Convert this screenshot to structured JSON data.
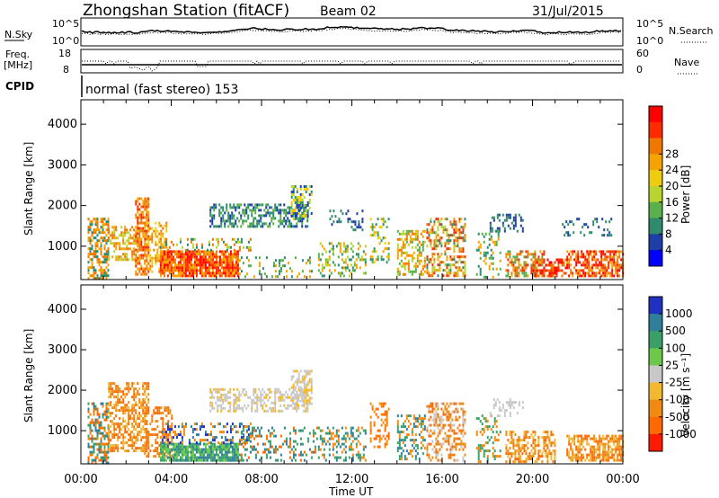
{
  "header": {
    "station": "Zhongshan Station (fitACF)",
    "beam": "Beam 02",
    "date": "31/Jul/2015",
    "mode": "normal (fast stereo) 153"
  },
  "top_panels": {
    "nsky_label": "N.Sky",
    "nsky_ticks": [
      "10^5",
      "10^0"
    ],
    "nsearch_label": "N.Search",
    "nsearch_ticks": [
      "10^5",
      "10^0"
    ],
    "freq_label_1": "Freq.",
    "freq_label_2": "[MHz]",
    "freq_ticks": [
      "18",
      "8"
    ],
    "nave_label": "Nave",
    "nave_ticks": [
      "60",
      "0"
    ],
    "cpid_label": "CPID"
  },
  "chart_data": [
    {
      "type": "heatmap",
      "name": "power",
      "ylabel": "Slant Range [km]",
      "xlabel": "Time UT",
      "x_ticks": [
        "00:00",
        "04:00",
        "08:00",
        "12:00",
        "16:00",
        "20:00",
        "00:00"
      ],
      "xlim_hours": [
        0,
        24
      ],
      "y_ticks": [
        1000,
        2000,
        3000,
        4000
      ],
      "ylim": [
        180,
        4600
      ],
      "colorbar": {
        "label": "Power [dB]",
        "ticks": [
          "4",
          "8",
          "12",
          "16",
          "20",
          "24",
          "28"
        ],
        "colors": [
          "#0000ff",
          "#1f3fa8",
          "#2f8a6e",
          "#5ab04a",
          "#b8d430",
          "#f0cc10",
          "#f5a300",
          "#f07800",
          "#ff2a00",
          "#ff0000"
        ]
      },
      "scatter_regions": [
        {
          "t": [
            0.3,
            1.2
          ],
          "r": [
            200,
            1700
          ],
          "cols": [
            2,
            6,
            7
          ],
          "d": 0.55
        },
        {
          "t": [
            1.2,
            2.6
          ],
          "r": [
            700,
            1500
          ],
          "cols": [
            4,
            6,
            7
          ],
          "d": 0.5
        },
        {
          "t": [
            2.4,
            3.0
          ],
          "r": [
            300,
            2200
          ],
          "cols": [
            6,
            7,
            8
          ],
          "d": 0.6
        },
        {
          "t": [
            2.8,
            3.8
          ],
          "r": [
            400,
            1600
          ],
          "cols": [
            5,
            6,
            7
          ],
          "d": 0.5
        },
        {
          "t": [
            3.5,
            7.0
          ],
          "r": [
            300,
            900
          ],
          "cols": [
            6,
            7,
            8,
            9
          ],
          "d": 0.9
        },
        {
          "t": [
            3.5,
            7.5
          ],
          "r": [
            900,
            1200
          ],
          "cols": [
            2,
            4,
            7
          ],
          "d": 0.25
        },
        {
          "t": [
            5.7,
            10.0
          ],
          "r": [
            1500,
            2050
          ],
          "cols": [
            1,
            2,
            3
          ],
          "d": 0.55
        },
        {
          "t": [
            9.3,
            10.2
          ],
          "r": [
            1700,
            2500
          ],
          "cols": [
            1,
            2,
            4,
            5
          ],
          "d": 0.6
        },
        {
          "t": [
            7.0,
            10.5
          ],
          "r": [
            250,
            750
          ],
          "cols": [
            2,
            3,
            6
          ],
          "d": 0.18
        },
        {
          "t": [
            10.5,
            12.6
          ],
          "r": [
            300,
            1100
          ],
          "cols": [
            2,
            3,
            4,
            6
          ],
          "d": 0.35
        },
        {
          "t": [
            11.0,
            12.5
          ],
          "r": [
            1400,
            1900
          ],
          "cols": [
            1,
            2
          ],
          "d": 0.25
        },
        {
          "t": [
            12.8,
            13.6
          ],
          "r": [
            600,
            1700
          ],
          "cols": [
            2,
            3,
            5,
            6
          ],
          "d": 0.4
        },
        {
          "t": [
            14.0,
            15.2
          ],
          "r": [
            300,
            1400
          ],
          "cols": [
            3,
            4,
            6,
            7
          ],
          "d": 0.45
        },
        {
          "t": [
            15.3,
            17.0
          ],
          "r": [
            300,
            1700
          ],
          "cols": [
            2,
            4,
            6,
            7,
            8
          ],
          "d": 0.5
        },
        {
          "t": [
            17.5,
            18.6
          ],
          "r": [
            250,
            1400
          ],
          "cols": [
            2,
            3,
            6
          ],
          "d": 0.3
        },
        {
          "t": [
            18.1,
            19.6
          ],
          "r": [
            1400,
            1800
          ],
          "cols": [
            1,
            2
          ],
          "d": 0.35
        },
        {
          "t": [
            18.8,
            20.5
          ],
          "r": [
            250,
            900
          ],
          "cols": [
            3,
            6,
            7,
            8
          ],
          "d": 0.55
        },
        {
          "t": [
            20.0,
            21.5
          ],
          "r": [
            250,
            700
          ],
          "cols": [
            7,
            8,
            9
          ],
          "d": 0.55
        },
        {
          "t": [
            21.5,
            24.0
          ],
          "r": [
            250,
            900
          ],
          "cols": [
            6,
            7,
            8,
            9
          ],
          "d": 0.7
        },
        {
          "t": [
            21.3,
            23.5
          ],
          "r": [
            1300,
            1700
          ],
          "cols": [
            1,
            2
          ],
          "d": 0.2
        }
      ]
    },
    {
      "type": "heatmap",
      "name": "velocity",
      "ylabel": "Slant Range [km]",
      "xlabel": "Time UT",
      "x_ticks": [
        "00:00",
        "04:00",
        "08:00",
        "12:00",
        "16:00",
        "20:00",
        "00:00"
      ],
      "xlim_hours": [
        0,
        24
      ],
      "y_ticks": [
        1000,
        2000,
        3000,
        4000
      ],
      "ylim": [
        180,
        4600
      ],
      "colorbar": {
        "label": "Velocity [m s⁻¹]",
        "ticks": [
          "1000",
          "500",
          "100",
          "25",
          "-25",
          "-100",
          "-500",
          "-1000"
        ],
        "colors": [
          "#2030c0",
          "#2f7f9a",
          "#3aa068",
          "#6cc84a",
          "#c8c8c8",
          "#f2b830",
          "#f08a10",
          "#ff6a00",
          "#ff1a00"
        ]
      },
      "scatter_regions": [
        {
          "t": [
            0.3,
            1.2
          ],
          "r": [
            200,
            1700
          ],
          "cols": [
            1,
            2,
            6,
            7
          ],
          "d": 0.55
        },
        {
          "t": [
            1.2,
            3.0
          ],
          "r": [
            500,
            2200
          ],
          "cols": [
            5,
            6,
            7
          ],
          "d": 0.55
        },
        {
          "t": [
            2.8,
            4.0
          ],
          "r": [
            400,
            1600
          ],
          "cols": [
            6,
            7
          ],
          "d": 0.5
        },
        {
          "t": [
            3.5,
            7.0
          ],
          "r": [
            250,
            700
          ],
          "cols": [
            1,
            2,
            3
          ],
          "d": 0.85
        },
        {
          "t": [
            3.5,
            7.5
          ],
          "r": [
            700,
            1200
          ],
          "cols": [
            0,
            1,
            6
          ],
          "d": 0.35
        },
        {
          "t": [
            5.7,
            10.0
          ],
          "r": [
            1500,
            2050
          ],
          "cols": [
            4,
            4,
            5
          ],
          "d": 0.5
        },
        {
          "t": [
            9.3,
            10.2
          ],
          "r": [
            1700,
            2500
          ],
          "cols": [
            4,
            4,
            5
          ],
          "d": 0.6
        },
        {
          "t": [
            7.0,
            10.5
          ],
          "r": [
            300,
            1100
          ],
          "cols": [
            1,
            2,
            7
          ],
          "d": 0.3
        },
        {
          "t": [
            10.5,
            12.6
          ],
          "r": [
            300,
            1100
          ],
          "cols": [
            1,
            2,
            6
          ],
          "d": 0.35
        },
        {
          "t": [
            12.8,
            13.6
          ],
          "r": [
            600,
            1700
          ],
          "cols": [
            6,
            7
          ],
          "d": 0.35
        },
        {
          "t": [
            14.0,
            15.2
          ],
          "r": [
            300,
            1400
          ],
          "cols": [
            1,
            2,
            6
          ],
          "d": 0.4
        },
        {
          "t": [
            15.3,
            17.0
          ],
          "r": [
            300,
            1700
          ],
          "cols": [
            4,
            6,
            7
          ],
          "d": 0.45
        },
        {
          "t": [
            17.5,
            18.6
          ],
          "r": [
            250,
            1400
          ],
          "cols": [
            2,
            6
          ],
          "d": 0.3
        },
        {
          "t": [
            18.1,
            19.6
          ],
          "r": [
            1400,
            1800
          ],
          "cols": [
            4
          ],
          "d": 0.3
        },
        {
          "t": [
            18.8,
            21.0
          ],
          "r": [
            250,
            1000
          ],
          "cols": [
            5,
            6,
            7
          ],
          "d": 0.5
        },
        {
          "t": [
            21.5,
            24.0
          ],
          "r": [
            250,
            900
          ],
          "cols": [
            5,
            6,
            7
          ],
          "d": 0.7
        }
      ]
    }
  ]
}
